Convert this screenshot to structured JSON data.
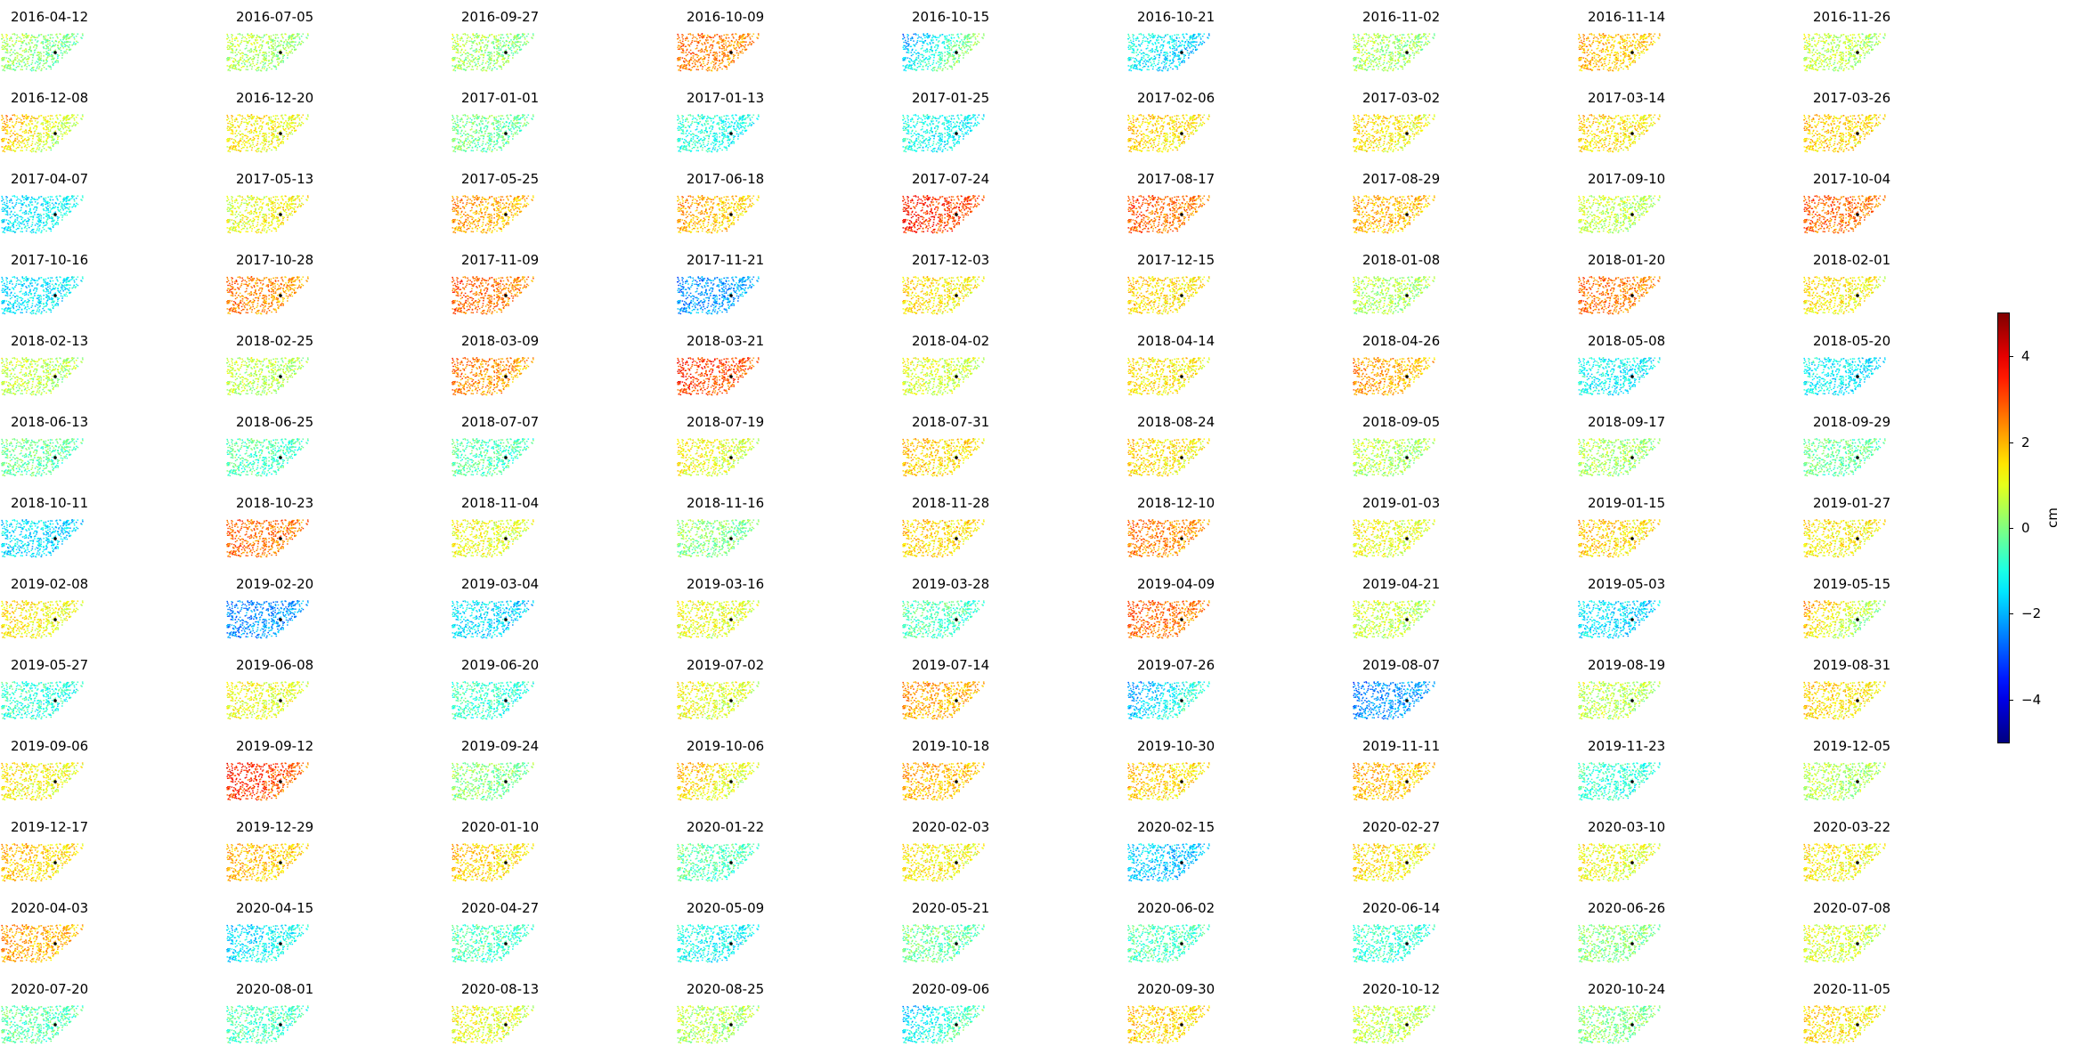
{
  "chart_data": {
    "type": "heatmap",
    "description_kind": "small-multiples",
    "colormap": "jet",
    "colorbar": {
      "label": "cm",
      "vmin": -5,
      "vmax": 5,
      "ticks": [
        4,
        2,
        0,
        -2,
        -4
      ],
      "tick_labels": [
        "4",
        "2",
        "0",
        "−2",
        "−4"
      ]
    },
    "grid": false,
    "panels": [
      {
        "date": "2016-04-12",
        "mean": 0.0,
        "gradient": 0.8
      },
      {
        "date": "2016-07-05",
        "mean": 0.3,
        "gradient": 0.5
      },
      {
        "date": "2016-09-27",
        "mean": 0.2,
        "gradient": 0.5
      },
      {
        "date": "2016-10-09",
        "mean": 2.4,
        "gradient": 0.6
      },
      {
        "date": "2016-10-15",
        "mean": -0.5,
        "gradient": -3.0
      },
      {
        "date": "2016-10-21",
        "mean": -1.5,
        "gradient": 0.8
      },
      {
        "date": "2016-11-02",
        "mean": 0.3,
        "gradient": 0.3
      },
      {
        "date": "2016-11-14",
        "mean": 1.8,
        "gradient": 0.5
      },
      {
        "date": "2016-11-26",
        "mean": 0.5,
        "gradient": 0.5
      },
      {
        "date": "2016-12-08",
        "mean": 1.0,
        "gradient": 2.0
      },
      {
        "date": "2016-12-20",
        "mean": 1.2,
        "gradient": 0.4
      },
      {
        "date": "2017-01-01",
        "mean": -0.2,
        "gradient": 0.4
      },
      {
        "date": "2017-01-13",
        "mean": -1.0,
        "gradient": 0.5
      },
      {
        "date": "2017-01-25",
        "mean": -1.2,
        "gradient": 0.5
      },
      {
        "date": "2017-02-06",
        "mean": 1.5,
        "gradient": 0.6
      },
      {
        "date": "2017-03-02",
        "mean": 1.3,
        "gradient": 0.6
      },
      {
        "date": "2017-03-14",
        "mean": 1.4,
        "gradient": 0.4
      },
      {
        "date": "2017-03-26",
        "mean": 1.6,
        "gradient": 0.4
      },
      {
        "date": "2017-04-07",
        "mean": -1.3,
        "gradient": -0.5
      },
      {
        "date": "2017-05-13",
        "mean": 1.2,
        "gradient": -0.6
      },
      {
        "date": "2017-05-25",
        "mean": 2.0,
        "gradient": 0.6
      },
      {
        "date": "2017-06-18",
        "mean": 1.8,
        "gradient": 0.8
      },
      {
        "date": "2017-07-24",
        "mean": 3.2,
        "gradient": 0.5
      },
      {
        "date": "2017-08-17",
        "mean": 2.6,
        "gradient": 0.7
      },
      {
        "date": "2017-08-29",
        "mean": 1.9,
        "gradient": 0.4
      },
      {
        "date": "2017-09-10",
        "mean": 0.6,
        "gradient": 0.4
      },
      {
        "date": "2017-10-04",
        "mean": 2.6,
        "gradient": 0.6
      },
      {
        "date": "2017-10-16",
        "mean": -1.4,
        "gradient": -0.4
      },
      {
        "date": "2017-10-28",
        "mean": 2.3,
        "gradient": 0.7
      },
      {
        "date": "2017-11-09",
        "mean": 2.6,
        "gradient": 0.6
      },
      {
        "date": "2017-11-21",
        "mean": -2.2,
        "gradient": -0.4
      },
      {
        "date": "2017-12-03",
        "mean": 1.4,
        "gradient": 0.5
      },
      {
        "date": "2017-12-15",
        "mean": 1.5,
        "gradient": 0.6
      },
      {
        "date": "2018-01-08",
        "mean": 0.4,
        "gradient": 0.4
      },
      {
        "date": "2018-01-20",
        "mean": 2.5,
        "gradient": 0.6
      },
      {
        "date": "2018-02-01",
        "mean": 1.3,
        "gradient": 0.4
      },
      {
        "date": "2018-02-13",
        "mean": 0.5,
        "gradient": 0.5
      },
      {
        "date": "2018-02-25",
        "mean": 0.5,
        "gradient": 0.4
      },
      {
        "date": "2018-03-09",
        "mean": 2.3,
        "gradient": 0.6
      },
      {
        "date": "2018-03-21",
        "mean": 3.0,
        "gradient": 0.7
      },
      {
        "date": "2018-04-02",
        "mean": 0.8,
        "gradient": 0.4
      },
      {
        "date": "2018-04-14",
        "mean": 1.4,
        "gradient": 0.4
      },
      {
        "date": "2018-04-26",
        "mean": 2.0,
        "gradient": 0.8
      },
      {
        "date": "2018-05-08",
        "mean": -1.3,
        "gradient": 0.4
      },
      {
        "date": "2018-05-20",
        "mean": -1.4,
        "gradient": 0.4
      },
      {
        "date": "2018-06-13",
        "mean": -0.3,
        "gradient": 0.4
      },
      {
        "date": "2018-06-25",
        "mean": -0.6,
        "gradient": 0.4
      },
      {
        "date": "2018-07-07",
        "mean": -0.5,
        "gradient": 0.4
      },
      {
        "date": "2018-07-19",
        "mean": 1.0,
        "gradient": 0.7
      },
      {
        "date": "2018-07-31",
        "mean": 1.6,
        "gradient": 0.5
      },
      {
        "date": "2018-08-24",
        "mean": 1.4,
        "gradient": 0.6
      },
      {
        "date": "2018-09-05",
        "mean": 0.4,
        "gradient": 0.4
      },
      {
        "date": "2018-09-17",
        "mean": 0.3,
        "gradient": 0.4
      },
      {
        "date": "2018-09-29",
        "mean": -0.3,
        "gradient": 0.4
      },
      {
        "date": "2018-10-11",
        "mean": -1.6,
        "gradient": 0.3
      },
      {
        "date": "2018-10-23",
        "mean": 2.6,
        "gradient": 0.4
      },
      {
        "date": "2018-11-04",
        "mean": 1.0,
        "gradient": 0.4
      },
      {
        "date": "2018-11-16",
        "mean": 0.0,
        "gradient": 0.4
      },
      {
        "date": "2018-11-28",
        "mean": 1.6,
        "gradient": 0.4
      },
      {
        "date": "2018-12-10",
        "mean": 2.4,
        "gradient": 0.5
      },
      {
        "date": "2019-01-03",
        "mean": 1.0,
        "gradient": 0.4
      },
      {
        "date": "2019-01-15",
        "mean": 1.6,
        "gradient": 0.4
      },
      {
        "date": "2019-01-27",
        "mean": 1.3,
        "gradient": 0.4
      },
      {
        "date": "2019-02-08",
        "mean": 1.2,
        "gradient": 0.8
      },
      {
        "date": "2019-02-20",
        "mean": -2.3,
        "gradient": -0.4
      },
      {
        "date": "2019-03-04",
        "mean": -1.6,
        "gradient": 0.3
      },
      {
        "date": "2019-03-16",
        "mean": 1.0,
        "gradient": 0.4
      },
      {
        "date": "2019-03-28",
        "mean": -0.6,
        "gradient": 0.4
      },
      {
        "date": "2019-04-09",
        "mean": 2.6,
        "gradient": 0.6
      },
      {
        "date": "2019-04-21",
        "mean": 0.6,
        "gradient": 0.4
      },
      {
        "date": "2019-05-03",
        "mean": -1.6,
        "gradient": 0.5
      },
      {
        "date": "2019-05-15",
        "mean": 0.8,
        "gradient": 2.5
      },
      {
        "date": "2019-05-27",
        "mean": -0.9,
        "gradient": 0.4
      },
      {
        "date": "2019-06-08",
        "mean": 1.0,
        "gradient": 0.4
      },
      {
        "date": "2019-06-20",
        "mean": -0.8,
        "gradient": 0.4
      },
      {
        "date": "2019-07-02",
        "mean": 1.0,
        "gradient": 0.4
      },
      {
        "date": "2019-07-14",
        "mean": 2.0,
        "gradient": 0.6
      },
      {
        "date": "2019-07-26",
        "mean": -1.2,
        "gradient": -2.0
      },
      {
        "date": "2019-08-07",
        "mean": -2.2,
        "gradient": -0.6
      },
      {
        "date": "2019-08-19",
        "mean": 0.5,
        "gradient": 0.4
      },
      {
        "date": "2019-08-31",
        "mean": 1.4,
        "gradient": 0.5
      },
      {
        "date": "2019-09-06",
        "mean": 1.2,
        "gradient": 0.5
      },
      {
        "date": "2019-09-12",
        "mean": 3.0,
        "gradient": 1.2
      },
      {
        "date": "2019-09-24",
        "mean": 0.0,
        "gradient": 0.4
      },
      {
        "date": "2019-10-06",
        "mean": 1.2,
        "gradient": 1.5
      },
      {
        "date": "2019-10-18",
        "mean": 1.9,
        "gradient": 0.5
      },
      {
        "date": "2019-10-30",
        "mean": 1.6,
        "gradient": 0.5
      },
      {
        "date": "2019-11-11",
        "mean": 1.8,
        "gradient": 0.5
      },
      {
        "date": "2019-11-23",
        "mean": -0.8,
        "gradient": 0.4
      },
      {
        "date": "2019-12-05",
        "mean": 0.4,
        "gradient": 0.3
      },
      {
        "date": "2019-12-17",
        "mean": 1.6,
        "gradient": 0.8
      },
      {
        "date": "2019-12-29",
        "mean": 1.8,
        "gradient": 0.6
      },
      {
        "date": "2020-01-10",
        "mean": 1.6,
        "gradient": 0.6
      },
      {
        "date": "2020-01-22",
        "mean": -0.5,
        "gradient": 0.4
      },
      {
        "date": "2020-02-03",
        "mean": 1.3,
        "gradient": 0.4
      },
      {
        "date": "2020-02-15",
        "mean": -1.8,
        "gradient": 0.5
      },
      {
        "date": "2020-02-27",
        "mean": 1.4,
        "gradient": 0.4
      },
      {
        "date": "2020-03-10",
        "mean": 1.0,
        "gradient": 0.4
      },
      {
        "date": "2020-03-22",
        "mean": 1.2,
        "gradient": 0.4
      },
      {
        "date": "2020-04-03",
        "mean": 2.0,
        "gradient": 0.6
      },
      {
        "date": "2020-04-15",
        "mean": -1.2,
        "gradient": -0.8
      },
      {
        "date": "2020-04-27",
        "mean": -0.6,
        "gradient": 0.4
      },
      {
        "date": "2020-05-09",
        "mean": -1.2,
        "gradient": 0.4
      },
      {
        "date": "2020-05-21",
        "mean": -0.3,
        "gradient": 0.4
      },
      {
        "date": "2020-06-02",
        "mean": -0.6,
        "gradient": 0.3
      },
      {
        "date": "2020-06-14",
        "mean": -0.8,
        "gradient": 0.4
      },
      {
        "date": "2020-06-26",
        "mean": 0.0,
        "gradient": 0.3
      },
      {
        "date": "2020-07-08",
        "mean": 0.8,
        "gradient": 0.4
      },
      {
        "date": "2020-07-20",
        "mean": -0.4,
        "gradient": 0.3
      },
      {
        "date": "2020-08-01",
        "mean": -0.6,
        "gradient": 0.3
      },
      {
        "date": "2020-08-13",
        "mean": 1.0,
        "gradient": 0.4
      },
      {
        "date": "2020-08-25",
        "mean": 0.4,
        "gradient": 0.3
      },
      {
        "date": "2020-09-06",
        "mean": -0.8,
        "gradient": -1.8
      },
      {
        "date": "2020-09-30",
        "mean": 1.6,
        "gradient": 0.5
      },
      {
        "date": "2020-10-12",
        "mean": 0.6,
        "gradient": 0.3
      },
      {
        "date": "2020-10-24",
        "mean": 0.0,
        "gradient": 0.3
      },
      {
        "date": "2020-11-05",
        "mean": 1.4,
        "gradient": 0.6
      }
    ]
  }
}
